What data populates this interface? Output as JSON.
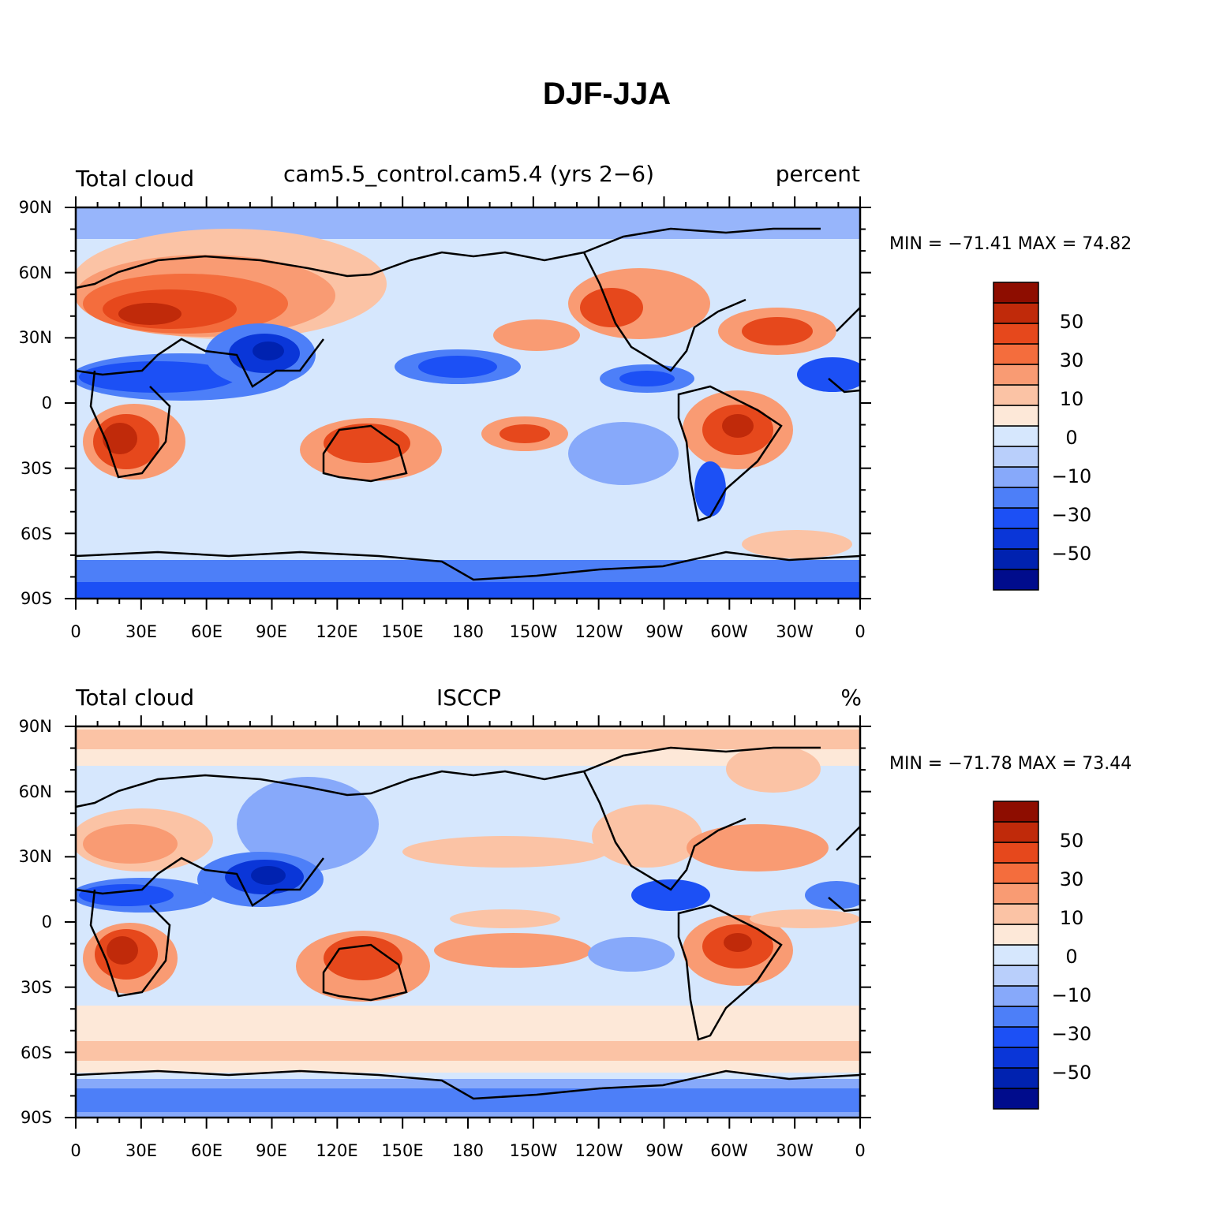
{
  "figure": {
    "title": "DJF-JJA",
    "panels": [
      {
        "left_label": "Total cloud",
        "center_label": "cam5.5_control.cam5.4 (yrs 2−6)",
        "right_label": "percent",
        "minmax_text": "MIN = −71.41  MAX =   74.82"
      },
      {
        "left_label": "Total cloud",
        "center_label": "ISCCP",
        "right_label": "%",
        "minmax_text": "MIN = −71.78  MAX =   73.44"
      }
    ],
    "lat_ticks": [
      "90N",
      "60N",
      "30N",
      "0",
      "30S",
      "60S",
      "90S"
    ],
    "lon_ticks": [
      "0",
      "30E",
      "60E",
      "90E",
      "120E",
      "150E",
      "180",
      "150W",
      "120W",
      "90W",
      "60W",
      "30W",
      "0"
    ]
  },
  "chart_data": {
    "type": "map",
    "projection": "cylindrical equidistant",
    "field": "Total cloud DJF-JJA difference",
    "lon_range": [
      0,
      360
    ],
    "lat_range": [
      -90,
      90
    ],
    "colorbar": {
      "labels": [
        "50",
        "30",
        "10",
        "0",
        "−10",
        "−30",
        "−50"
      ],
      "levels": [
        -60,
        -50,
        -40,
        -30,
        -20,
        -10,
        -5,
        0,
        5,
        10,
        20,
        30,
        40,
        50,
        60
      ],
      "colors": [
        "#000c8c",
        "#0022b0",
        "#0a36d8",
        "#1c50f5",
        "#4d7ff8",
        "#87a9fa",
        "#b9cffb",
        "#d6e7fd",
        "#fde8d8",
        "#fbc3a5",
        "#f99b73",
        "#f46d3d",
        "#e6481c",
        "#c02a0a",
        "#8e0d00"
      ]
    },
    "panels": [
      {
        "name": "cam5.5_control.cam5.4 (yrs 2-6)",
        "units": "percent",
        "min": -71.41,
        "max": 74.82
      },
      {
        "name": "ISCCP",
        "units": "%",
        "min": -71.78,
        "max": 73.44
      }
    ],
    "colors": {
      "strong_positive": "#8e0d00",
      "strong_negative": "#000c8c",
      "coast": "#000000"
    }
  }
}
